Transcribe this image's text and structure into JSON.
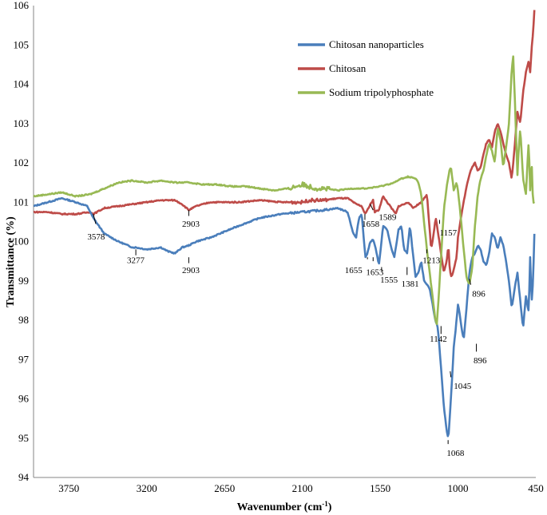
{
  "chart_data": {
    "type": "line",
    "xlabel_main": "Wavenumber (cm",
    "xlabel_sup": "-1",
    "xlabel_end": ")",
    "ylabel": "Transmittance (%)",
    "xlim": [
      4000,
      450
    ],
    "x_reversed": true,
    "ylim": [
      94,
      106
    ],
    "xticks": [
      3750,
      3200,
      2650,
      2100,
      1550,
      1000,
      450
    ],
    "yticks": [
      94,
      95,
      96,
      97,
      98,
      99,
      100,
      101,
      102,
      103,
      104,
      105,
      106
    ],
    "grid": false,
    "legend_placement": "top-right",
    "series": [
      {
        "name": "Chitosan nanoparticles",
        "color": "#4a7ebb",
        "points": [
          [
            4000,
            100.9
          ],
          [
            3900,
            101.0
          ],
          [
            3800,
            101.1
          ],
          [
            3700,
            101.0
          ],
          [
            3620,
            100.9
          ],
          [
            3578,
            100.6
          ],
          [
            3500,
            100.2
          ],
          [
            3400,
            100.0
          ],
          [
            3300,
            99.85
          ],
          [
            3277,
            99.85
          ],
          [
            3200,
            99.8
          ],
          [
            3100,
            99.85
          ],
          [
            3050,
            99.75
          ],
          [
            3000,
            99.7
          ],
          [
            2950,
            99.85
          ],
          [
            2903,
            99.9
          ],
          [
            2850,
            100.0
          ],
          [
            2750,
            100.1
          ],
          [
            2650,
            100.25
          ],
          [
            2550,
            100.4
          ],
          [
            2400,
            100.6
          ],
          [
            2250,
            100.7
          ],
          [
            2100,
            100.75
          ],
          [
            1950,
            100.8
          ],
          [
            1850,
            100.85
          ],
          [
            1780,
            100.75
          ],
          [
            1740,
            100.2
          ],
          [
            1720,
            100.1
          ],
          [
            1700,
            100.6
          ],
          [
            1680,
            100.7
          ],
          [
            1655,
            99.6
          ],
          [
            1640,
            99.7
          ],
          [
            1620,
            100.0
          ],
          [
            1600,
            100.05
          ],
          [
            1580,
            99.8
          ],
          [
            1560,
            99.4
          ],
          [
            1555,
            99.5
          ],
          [
            1530,
            100.4
          ],
          [
            1500,
            100.3
          ],
          [
            1470,
            99.8
          ],
          [
            1450,
            99.6
          ],
          [
            1420,
            100.3
          ],
          [
            1400,
            100.4
          ],
          [
            1381,
            99.8
          ],
          [
            1360,
            99.7
          ],
          [
            1340,
            100.4
          ],
          [
            1300,
            99.1
          ],
          [
            1280,
            99.2
          ],
          [
            1260,
            99.5
          ],
          [
            1240,
            99.0
          ],
          [
            1200,
            98.8
          ],
          [
            1180,
            98.4
          ],
          [
            1160,
            98.0
          ],
          [
            1142,
            97.8
          ],
          [
            1120,
            96.8
          ],
          [
            1100,
            95.8
          ],
          [
            1080,
            95.2
          ],
          [
            1068,
            95.0
          ],
          [
            1050,
            96.0
          ],
          [
            1045,
            96.3
          ],
          [
            1030,
            97.3
          ],
          [
            1010,
            98.0
          ],
          [
            1000,
            98.4
          ],
          [
            990,
            98.2
          ],
          [
            975,
            97.8
          ],
          [
            960,
            97.5
          ],
          [
            940,
            98.3
          ],
          [
            920,
            99.2
          ],
          [
            900,
            99.6
          ],
          [
            880,
            99.7
          ],
          [
            860,
            99.9
          ],
          [
            840,
            99.8
          ],
          [
            820,
            99.5
          ],
          [
            800,
            99.4
          ],
          [
            780,
            99.7
          ],
          [
            760,
            100.2
          ],
          [
            740,
            100.1
          ],
          [
            720,
            99.8
          ],
          [
            700,
            100.1
          ],
          [
            680,
            99.9
          ],
          [
            660,
            99.5
          ],
          [
            640,
            99.0
          ],
          [
            620,
            98.3
          ],
          [
            600,
            98.8
          ],
          [
            580,
            99.2
          ],
          [
            560,
            98.5
          ],
          [
            540,
            97.8
          ],
          [
            520,
            98.6
          ],
          [
            500,
            98.2
          ],
          [
            490,
            99.6
          ],
          [
            480,
            98.4
          ],
          [
            470,
            99.0
          ],
          [
            460,
            100.2
          ]
        ]
      },
      {
        "name": "Chitosan",
        "color": "#be4b48",
        "points": [
          [
            4000,
            100.75
          ],
          [
            3900,
            100.75
          ],
          [
            3800,
            100.7
          ],
          [
            3700,
            100.7
          ],
          [
            3600,
            100.75
          ],
          [
            3578,
            100.7
          ],
          [
            3500,
            100.85
          ],
          [
            3400,
            100.9
          ],
          [
            3300,
            100.95
          ],
          [
            3200,
            101.0
          ],
          [
            3100,
            101.05
          ],
          [
            3000,
            101.05
          ],
          [
            2950,
            100.95
          ],
          [
            2903,
            100.8
          ],
          [
            2850,
            100.9
          ],
          [
            2750,
            101.0
          ],
          [
            2650,
            101.0
          ],
          [
            2550,
            101.0
          ],
          [
            2400,
            101.05
          ],
          [
            2250,
            101.0
          ],
          [
            2100,
            101.0
          ],
          [
            2050,
            101.05
          ],
          [
            1950,
            101.05
          ],
          [
            1850,
            101.1
          ],
          [
            1780,
            101.1
          ],
          [
            1720,
            100.95
          ],
          [
            1680,
            100.9
          ],
          [
            1658,
            100.7
          ],
          [
            1640,
            100.8
          ],
          [
            1620,
            100.95
          ],
          [
            1600,
            101.05
          ],
          [
            1589,
            100.75
          ],
          [
            1560,
            100.8
          ],
          [
            1530,
            101.15
          ],
          [
            1500,
            101.0
          ],
          [
            1470,
            100.85
          ],
          [
            1440,
            100.7
          ],
          [
            1420,
            100.9
          ],
          [
            1381,
            100.95
          ],
          [
            1350,
            101.0
          ],
          [
            1320,
            100.85
          ],
          [
            1300,
            100.9
          ],
          [
            1280,
            100.95
          ],
          [
            1260,
            101.0
          ],
          [
            1240,
            101.1
          ],
          [
            1220,
            101.2
          ],
          [
            1213,
            100.9
          ],
          [
            1200,
            100.3
          ],
          [
            1190,
            99.8
          ],
          [
            1180,
            100.0
          ],
          [
            1157,
            100.6
          ],
          [
            1140,
            100.2
          ],
          [
            1120,
            99.7
          ],
          [
            1100,
            99.2
          ],
          [
            1080,
            99.5
          ],
          [
            1068,
            99.9
          ],
          [
            1060,
            99.4
          ],
          [
            1050,
            99.1
          ],
          [
            1040,
            99.15
          ],
          [
            1030,
            99.3
          ],
          [
            1010,
            99.6
          ],
          [
            1000,
            100.1
          ],
          [
            980,
            100.6
          ],
          [
            960,
            101.0
          ],
          [
            940,
            101.4
          ],
          [
            920,
            101.7
          ],
          [
            900,
            101.9
          ],
          [
            896,
            101.9
          ],
          [
            880,
            102.0
          ],
          [
            860,
            101.8
          ],
          [
            840,
            101.9
          ],
          [
            820,
            102.2
          ],
          [
            800,
            102.5
          ],
          [
            780,
            102.6
          ],
          [
            760,
            102.4
          ],
          [
            740,
            102.8
          ],
          [
            720,
            103.0
          ],
          [
            700,
            102.8
          ],
          [
            680,
            102.5
          ],
          [
            660,
            102.2
          ],
          [
            640,
            102.0
          ],
          [
            620,
            101.6
          ],
          [
            600,
            102.4
          ],
          [
            580,
            103.3
          ],
          [
            560,
            103.0
          ],
          [
            540,
            103.8
          ],
          [
            520,
            104.3
          ],
          [
            500,
            104.6
          ],
          [
            490,
            104.3
          ],
          [
            480,
            104.9
          ],
          [
            470,
            105.3
          ],
          [
            460,
            105.9
          ]
        ]
      },
      {
        "name": "Sodium tripolyphosphate",
        "color": "#98b954",
        "points": [
          [
            4000,
            101.15
          ],
          [
            3900,
            101.2
          ],
          [
            3800,
            101.25
          ],
          [
            3700,
            101.15
          ],
          [
            3600,
            101.2
          ],
          [
            3500,
            101.35
          ],
          [
            3400,
            101.5
          ],
          [
            3300,
            101.55
          ],
          [
            3200,
            101.5
          ],
          [
            3100,
            101.55
          ],
          [
            3000,
            101.5
          ],
          [
            2900,
            101.5
          ],
          [
            2800,
            101.45
          ],
          [
            2700,
            101.45
          ],
          [
            2600,
            101.4
          ],
          [
            2500,
            101.4
          ],
          [
            2400,
            101.35
          ],
          [
            2300,
            101.3
          ],
          [
            2200,
            101.35
          ],
          [
            2150,
            101.4
          ],
          [
            2100,
            101.45
          ],
          [
            2050,
            101.4
          ],
          [
            2000,
            101.35
          ],
          [
            1950,
            101.35
          ],
          [
            1850,
            101.3
          ],
          [
            1750,
            101.35
          ],
          [
            1650,
            101.35
          ],
          [
            1550,
            101.4
          ],
          [
            1500,
            101.45
          ],
          [
            1450,
            101.5
          ],
          [
            1400,
            101.6
          ],
          [
            1350,
            101.65
          ],
          [
            1300,
            101.6
          ],
          [
            1280,
            101.5
          ],
          [
            1260,
            101.2
          ],
          [
            1240,
            100.5
          ],
          [
            1220,
            99.8
          ],
          [
            1200,
            99.2
          ],
          [
            1180,
            98.6
          ],
          [
            1160,
            98.0
          ],
          [
            1150,
            97.9
          ],
          [
            1140,
            98.4
          ],
          [
            1120,
            99.6
          ],
          [
            1100,
            100.8
          ],
          [
            1080,
            101.4
          ],
          [
            1060,
            101.8
          ],
          [
            1050,
            101.9
          ],
          [
            1040,
            101.6
          ],
          [
            1030,
            101.3
          ],
          [
            1010,
            101.5
          ],
          [
            1000,
            101.3
          ],
          [
            980,
            100.6
          ],
          [
            960,
            99.8
          ],
          [
            940,
            99.1
          ],
          [
            920,
            98.9
          ],
          [
            900,
            99.3
          ],
          [
            880,
            100.4
          ],
          [
            860,
            101.2
          ],
          [
            840,
            101.6
          ],
          [
            820,
            101.8
          ],
          [
            800,
            102.2
          ],
          [
            780,
            102.5
          ],
          [
            760,
            102.3
          ],
          [
            740,
            102.0
          ],
          [
            720,
            102.9
          ],
          [
            700,
            102.6
          ],
          [
            680,
            101.9
          ],
          [
            660,
            102.4
          ],
          [
            640,
            103.0
          ],
          [
            620,
            104.4
          ],
          [
            610,
            104.7
          ],
          [
            600,
            103.8
          ],
          [
            580,
            101.7
          ],
          [
            570,
            102.4
          ],
          [
            560,
            102.9
          ],
          [
            540,
            101.6
          ],
          [
            520,
            101.2
          ],
          [
            500,
            102.6
          ],
          [
            490,
            101.3
          ],
          [
            480,
            102.1
          ],
          [
            470,
            101.0
          ]
        ]
      }
    ],
    "annotations": [
      {
        "label": "3578",
        "x": 3578
      },
      {
        "label": "3277",
        "x": 3277
      },
      {
        "label": "2903",
        "x": 2903
      },
      {
        "label": "2903",
        "x": 2903
      },
      {
        "label": "1658",
        "x": 1658
      },
      {
        "label": "1589",
        "x": 1589
      },
      {
        "label": "1655",
        "x": 1655
      },
      {
        "label": "1653",
        "x": 1653
      },
      {
        "label": "1555",
        "x": 1555
      },
      {
        "label": "1381",
        "x": 1381
      },
      {
        "label": "1213",
        "x": 1213
      },
      {
        "label": "1157",
        "x": 1157
      },
      {
        "label": "1142",
        "x": 1142
      },
      {
        "label": "896",
        "x": 896
      },
      {
        "label": "896",
        "x": 896
      },
      {
        "label": "1045",
        "x": 1045
      },
      {
        "label": "1068",
        "x": 1068
      }
    ]
  }
}
